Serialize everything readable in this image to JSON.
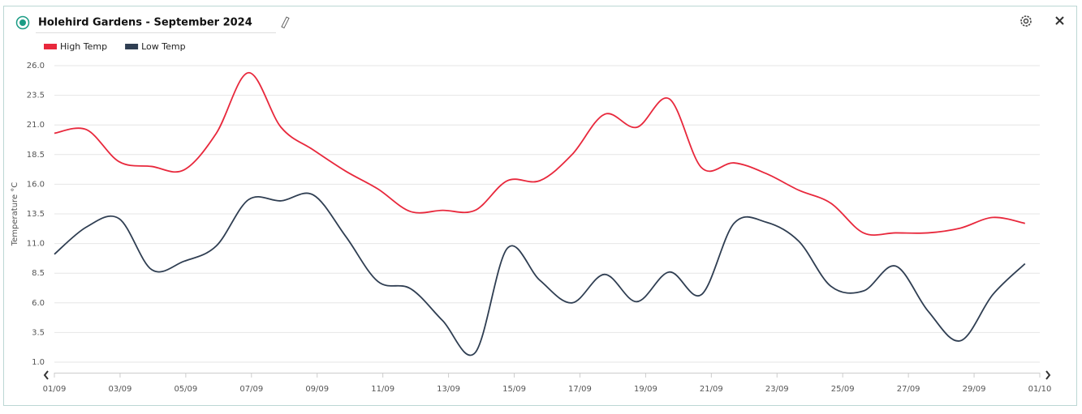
{
  "header": {
    "title": "Holehird Gardens - September 2024"
  },
  "chart_data": {
    "type": "line",
    "title": "Holehird Gardens - September 2024",
    "ylabel": "Temperature °C",
    "x": [
      1,
      1.98,
      2.97,
      3.96,
      4.94,
      5.93,
      6.91,
      7.9,
      8.88,
      9.87,
      10.85,
      11.84,
      12.82,
      13.81,
      14.79,
      15.78,
      16.76,
      17.75,
      18.73,
      19.72,
      20.7,
      21.69,
      22.67,
      23.66,
      24.64,
      25.63,
      26.61,
      27.6,
      28.58,
      29.57,
      30.55
    ],
    "series": [
      {
        "name": "High Temp",
        "color": "#e8283c",
        "values": [
          20.3,
          20.6,
          17.9,
          17.5,
          17.2,
          20.3,
          25.4,
          20.8,
          18.9,
          17.1,
          15.6,
          13.7,
          13.8,
          13.8,
          16.3,
          16.3,
          18.5,
          21.9,
          20.8,
          23.2,
          17.4,
          17.8,
          16.9,
          15.5,
          14.4,
          11.9,
          11.9,
          11.9,
          12.3,
          13.2,
          12.7
        ]
      },
      {
        "name": "Low Temp",
        "color": "#2f3e52",
        "values": [
          10.1,
          12.4,
          13.1,
          8.8,
          9.5,
          10.8,
          14.7,
          14.6,
          15.1,
          11.6,
          7.8,
          7.2,
          4.5,
          1.8,
          10.6,
          7.9,
          6.0,
          8.4,
          6.1,
          8.6,
          6.7,
          12.7,
          12.8,
          11.2,
          7.4,
          7.0,
          9.1,
          5.3,
          2.8,
          6.7,
          9.3
        ]
      }
    ],
    "xlim": [
      1,
      31
    ],
    "xticks": [
      {
        "value": 1,
        "label": "01/09"
      },
      {
        "value": 3,
        "label": "03/09"
      },
      {
        "value": 5,
        "label": "05/09"
      },
      {
        "value": 7,
        "label": "07/09"
      },
      {
        "value": 9,
        "label": "09/09"
      },
      {
        "value": 11,
        "label": "11/09"
      },
      {
        "value": 13,
        "label": "13/09"
      },
      {
        "value": 15,
        "label": "15/09"
      },
      {
        "value": 17,
        "label": "17/09"
      },
      {
        "value": 19,
        "label": "19/09"
      },
      {
        "value": 21,
        "label": "21/09"
      },
      {
        "value": 23,
        "label": "23/09"
      },
      {
        "value": 25,
        "label": "25/09"
      },
      {
        "value": 27,
        "label": "27/09"
      },
      {
        "value": 29,
        "label": "29/09"
      },
      {
        "value": 31,
        "label": "01/10"
      }
    ],
    "ylim": [
      1,
      26
    ],
    "yticks": [
      {
        "value": 1,
        "label": "1.0"
      },
      {
        "value": 3.5,
        "label": "3.5"
      },
      {
        "value": 6,
        "label": "6.0"
      },
      {
        "value": 8.5,
        "label": "8.5"
      },
      {
        "value": 11,
        "label": "11.0"
      },
      {
        "value": 13.5,
        "label": "13.5"
      },
      {
        "value": 16,
        "label": "16.0"
      },
      {
        "value": 18.5,
        "label": "18.5"
      },
      {
        "value": 21,
        "label": "21.0"
      },
      {
        "value": 23.5,
        "label": "23.5"
      },
      {
        "value": 26,
        "label": "26.0"
      }
    ],
    "grid": true
  }
}
